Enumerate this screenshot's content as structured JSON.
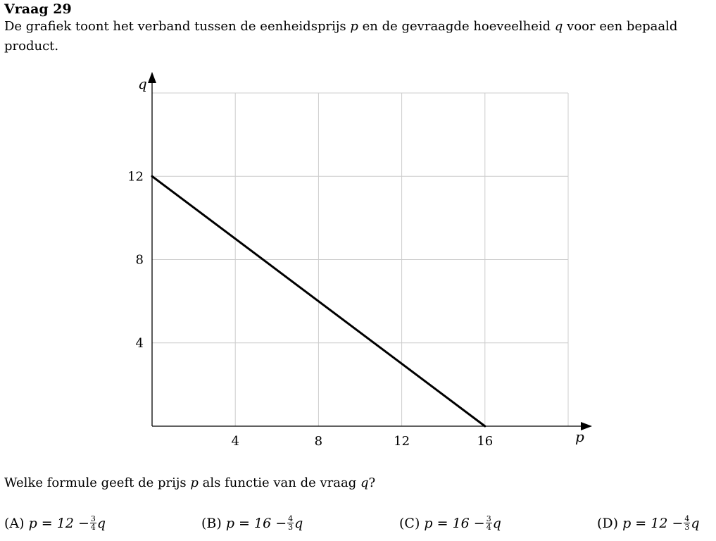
{
  "question": {
    "title": "Vraag 29",
    "intro_before_p": "De grafiek toont het verband tussen de eenheidsprijs ",
    "var_p": "p",
    "intro_mid": " en de gevraagde hoeveelheid ",
    "var_q": "q",
    "intro_after_q": " voor een bepaald product.",
    "prompt_before_p": "Welke formule geeft de prijs ",
    "prompt_mid": " als functie van de vraag ",
    "prompt_end": "?"
  },
  "options": [
    {
      "label": "(A)",
      "lhs": "p = 12 −",
      "num": "3",
      "den": "4",
      "var": "q"
    },
    {
      "label": "(B)",
      "lhs": "p = 16 −",
      "num": "4",
      "den": "3",
      "var": "q"
    },
    {
      "label": "(C)",
      "lhs": "p = 16 −",
      "num": "3",
      "den": "4",
      "var": "q"
    },
    {
      "label": "(D)",
      "lhs": "p = 12 −",
      "num": "4",
      "den": "3",
      "var": "q"
    }
  ],
  "chart_data": {
    "type": "line",
    "xlabel": "p",
    "ylabel": "q",
    "xlim": [
      0,
      20
    ],
    "ylim": [
      0,
      16
    ],
    "x_ticks": [
      4,
      8,
      12,
      16
    ],
    "y_ticks": [
      4,
      8,
      12
    ],
    "grid": true,
    "series": [
      {
        "x": [
          0,
          16
        ],
        "y": [
          12,
          0
        ]
      }
    ],
    "colors": {
      "line": "#000000",
      "grid": "#cccccc",
      "axis": "#000000"
    }
  }
}
